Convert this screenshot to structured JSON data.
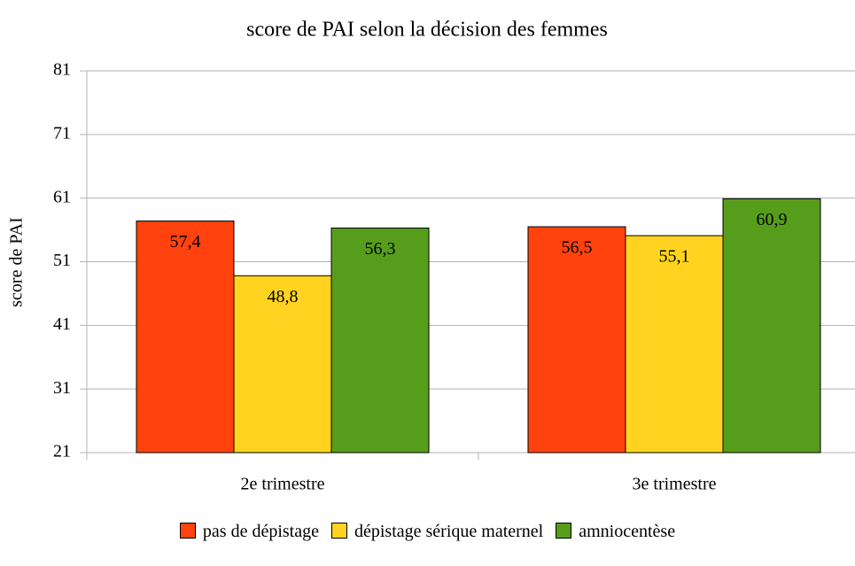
{
  "chart_data": {
    "type": "bar",
    "title": "score de PAI selon la décision des femmes",
    "y_label": "score de PAI",
    "categories": [
      "2e trimestre",
      "3e trimestre"
    ],
    "series": [
      {
        "name": "pas de dépistage",
        "color": "#ff420e",
        "values": [
          57.4,
          56.5
        ],
        "value_labels": [
          "57,4",
          "56,5"
        ]
      },
      {
        "name": "dépistage sérique maternel",
        "color": "#ffd320",
        "values": [
          48.8,
          55.1
        ],
        "value_labels": [
          "48,8",
          "55,1"
        ]
      },
      {
        "name": "amniocentèse",
        "color": "#579d1c",
        "values": [
          56.3,
          60.9
        ],
        "value_labels": [
          "56,3",
          "60,9"
        ]
      }
    ],
    "ylim": [
      21,
      81
    ],
    "yticks": [
      21,
      31,
      41,
      51,
      61,
      71,
      81
    ],
    "grid": true,
    "legend": "bottom"
  }
}
